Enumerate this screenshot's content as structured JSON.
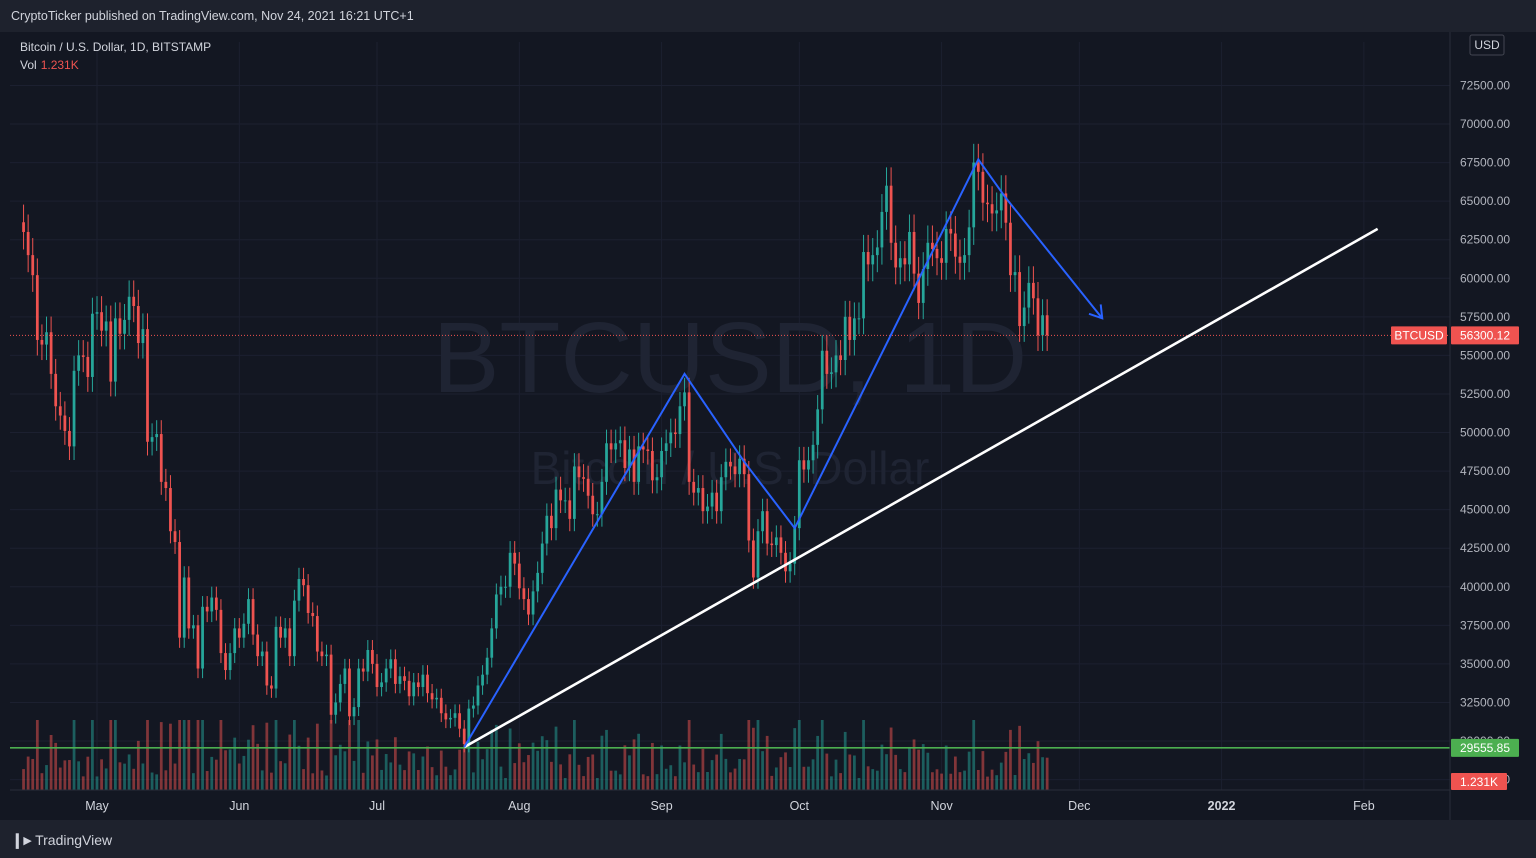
{
  "header": {
    "published_by": "CryptoTicker published on TradingView.com, Nov 24, 2021 16:21 UTC+1"
  },
  "symbol_legend": {
    "title": "Bitcoin / U.S. Dollar, 1D, BITSTAMP",
    "vol_label": "Vol",
    "vol_value": "1.231K"
  },
  "watermark": {
    "symbol": "BTCUSD, 1D",
    "name": "Bitcoin / U.S. Dollar"
  },
  "currency": "USD",
  "footer": {
    "brand": "TradingView"
  },
  "colors": {
    "up": "#26a69a",
    "down": "#ef5350",
    "pattern": "#2962ff",
    "trendline": "#ffffff",
    "support": "#4caf50",
    "background": "#131722"
  },
  "chart_data": {
    "type": "candlestick",
    "ylim": [
      26000,
      73000
    ],
    "y_ticks": [
      "27500.00",
      "30000.00",
      "32500.00",
      "35000.00",
      "37500.00",
      "40000.00",
      "42500.00",
      "45000.00",
      "47500.00",
      "50000.00",
      "52500.00",
      "55000.00",
      "57500.00",
      "60000.00",
      "62500.00",
      "65000.00",
      "67500.00",
      "70000.00",
      "72500.00"
    ],
    "x_ticks": [
      "May",
      "Jun",
      "Jul",
      "Aug",
      "Sep",
      "Oct",
      "Nov",
      "Dec",
      "2022",
      "Feb"
    ],
    "last_price": {
      "label": "BTCUSD",
      "value": 56300.12
    },
    "support_level": {
      "value": 29555.85
    },
    "volume_label": "1.231K",
    "closes": [
      [
        "2021-04-15",
        63000
      ],
      [
        "2021-04-16",
        61500
      ],
      [
        "2021-04-17",
        60200
      ],
      [
        "2021-04-18",
        56000
      ],
      [
        "2021-04-19",
        55700
      ],
      [
        "2021-04-20",
        56500
      ],
      [
        "2021-04-21",
        53800
      ],
      [
        "2021-04-22",
        51700
      ],
      [
        "2021-04-23",
        51100
      ],
      [
        "2021-04-24",
        50100
      ],
      [
        "2021-04-25",
        49100
      ],
      [
        "2021-04-26",
        54000
      ],
      [
        "2021-04-27",
        55000
      ],
      [
        "2021-04-28",
        54900
      ],
      [
        "2021-04-29",
        53600
      ],
      [
        "2021-04-30",
        57700
      ],
      [
        "2021-05-01",
        57800
      ],
      [
        "2021-05-02",
        56600
      ],
      [
        "2021-05-03",
        57200
      ],
      [
        "2021-05-04",
        53300
      ],
      [
        "2021-05-05",
        57400
      ],
      [
        "2021-05-06",
        56400
      ],
      [
        "2021-05-07",
        57300
      ],
      [
        "2021-05-08",
        58800
      ],
      [
        "2021-05-09",
        58200
      ],
      [
        "2021-05-10",
        55800
      ],
      [
        "2021-05-11",
        56700
      ],
      [
        "2021-05-12",
        49400
      ],
      [
        "2021-05-13",
        49700
      ],
      [
        "2021-05-14",
        49900
      ],
      [
        "2021-05-15",
        46800
      ],
      [
        "2021-05-16",
        46400
      ],
      [
        "2021-05-17",
        43600
      ],
      [
        "2021-05-18",
        42900
      ],
      [
        "2021-05-19",
        36700
      ],
      [
        "2021-05-20",
        40600
      ],
      [
        "2021-05-21",
        37300
      ],
      [
        "2021-05-22",
        37500
      ],
      [
        "2021-05-23",
        34700
      ],
      [
        "2021-05-24",
        38700
      ],
      [
        "2021-05-25",
        38400
      ],
      [
        "2021-05-26",
        39300
      ],
      [
        "2021-05-27",
        38500
      ],
      [
        "2021-05-28",
        35700
      ],
      [
        "2021-05-29",
        34600
      ],
      [
        "2021-05-30",
        35700
      ],
      [
        "2021-05-31",
        37300
      ],
      [
        "2021-06-01",
        36700
      ],
      [
        "2021-06-02",
        37600
      ],
      [
        "2021-06-03",
        39200
      ],
      [
        "2021-06-04",
        36900
      ],
      [
        "2021-06-05",
        35500
      ],
      [
        "2021-06-06",
        35800
      ],
      [
        "2021-06-07",
        33600
      ],
      [
        "2021-06-08",
        33400
      ],
      [
        "2021-06-09",
        37400
      ],
      [
        "2021-06-10",
        36700
      ],
      [
        "2021-06-11",
        37300
      ],
      [
        "2021-06-12",
        35500
      ],
      [
        "2021-06-13",
        39100
      ],
      [
        "2021-06-14",
        40500
      ],
      [
        "2021-06-15",
        40100
      ],
      [
        "2021-06-16",
        38300
      ],
      [
        "2021-06-17",
        38100
      ],
      [
        "2021-06-18",
        35800
      ],
      [
        "2021-06-19",
        35500
      ],
      [
        "2021-06-20",
        35600
      ],
      [
        "2021-06-21",
        31700
      ],
      [
        "2021-06-22",
        32500
      ],
      [
        "2021-06-23",
        33700
      ],
      [
        "2021-06-24",
        34700
      ],
      [
        "2021-06-25",
        31600
      ],
      [
        "2021-06-26",
        32200
      ],
      [
        "2021-06-27",
        34700
      ],
      [
        "2021-06-28",
        34500
      ],
      [
        "2021-06-29",
        35900
      ],
      [
        "2021-06-30",
        35000
      ],
      [
        "2021-07-01",
        33500
      ],
      [
        "2021-07-02",
        33800
      ],
      [
        "2021-07-03",
        34700
      ],
      [
        "2021-07-04",
        35300
      ],
      [
        "2021-07-05",
        33700
      ],
      [
        "2021-07-06",
        34200
      ],
      [
        "2021-07-07",
        33900
      ],
      [
        "2021-07-08",
        32900
      ],
      [
        "2021-07-09",
        33800
      ],
      [
        "2021-07-10",
        33500
      ],
      [
        "2021-07-11",
        34300
      ],
      [
        "2021-07-12",
        33100
      ],
      [
        "2021-07-13",
        32700
      ],
      [
        "2021-07-14",
        32800
      ],
      [
        "2021-07-15",
        31800
      ],
      [
        "2021-07-16",
        31400
      ],
      [
        "2021-07-17",
        31500
      ],
      [
        "2021-07-18",
        31800
      ],
      [
        "2021-07-19",
        30800
      ],
      [
        "2021-07-20",
        29800
      ],
      [
        "2021-07-21",
        32100
      ],
      [
        "2021-07-22",
        32300
      ],
      [
        "2021-07-23",
        33600
      ],
      [
        "2021-07-24",
        34300
      ],
      [
        "2021-07-25",
        35400
      ],
      [
        "2021-07-26",
        37300
      ],
      [
        "2021-07-27",
        39500
      ],
      [
        "2021-07-28",
        40000
      ],
      [
        "2021-07-29",
        40000
      ],
      [
        "2021-07-30",
        42200
      ],
      [
        "2021-07-31",
        41500
      ],
      [
        "2021-08-01",
        39900
      ],
      [
        "2021-08-02",
        39200
      ],
      [
        "2021-08-03",
        38200
      ],
      [
        "2021-08-04",
        39700
      ],
      [
        "2021-08-05",
        40900
      ],
      [
        "2021-08-06",
        42800
      ],
      [
        "2021-08-07",
        44600
      ],
      [
        "2021-08-08",
        43800
      ],
      [
        "2021-08-09",
        46300
      ],
      [
        "2021-08-10",
        45600
      ],
      [
        "2021-08-11",
        45600
      ],
      [
        "2021-08-12",
        44400
      ],
      [
        "2021-08-13",
        47800
      ],
      [
        "2021-08-14",
        47100
      ],
      [
        "2021-08-15",
        47000
      ],
      [
        "2021-08-16",
        45900
      ],
      [
        "2021-08-17",
        44700
      ],
      [
        "2021-08-18",
        44700
      ],
      [
        "2021-08-19",
        46800
      ],
      [
        "2021-08-20",
        49300
      ],
      [
        "2021-08-21",
        48900
      ],
      [
        "2021-08-22",
        49300
      ],
      [
        "2021-08-23",
        49500
      ],
      [
        "2021-08-24",
        47700
      ],
      [
        "2021-08-25",
        48900
      ],
      [
        "2021-08-26",
        46800
      ],
      [
        "2021-08-27",
        49100
      ],
      [
        "2021-08-28",
        48900
      ],
      [
        "2021-08-29",
        48800
      ],
      [
        "2021-08-30",
        46900
      ],
      [
        "2021-08-31",
        47100
      ],
      [
        "2021-09-01",
        48800
      ],
      [
        "2021-09-02",
        49300
      ],
      [
        "2021-09-03",
        50000
      ],
      [
        "2021-09-04",
        49900
      ],
      [
        "2021-09-05",
        51700
      ],
      [
        "2021-09-06",
        52600
      ],
      [
        "2021-09-07",
        46800
      ],
      [
        "2021-09-08",
        46100
      ],
      [
        "2021-09-09",
        46400
      ],
      [
        "2021-09-10",
        44900
      ],
      [
        "2021-09-11",
        45200
      ],
      [
        "2021-09-12",
        46100
      ],
      [
        "2021-09-13",
        44900
      ],
      [
        "2021-09-14",
        47100
      ],
      [
        "2021-09-15",
        48100
      ],
      [
        "2021-09-16",
        47800
      ],
      [
        "2021-09-17",
        47300
      ],
      [
        "2021-09-18",
        48300
      ],
      [
        "2021-09-19",
        47300
      ],
      [
        "2021-09-20",
        43000
      ],
      [
        "2021-09-21",
        40600
      ],
      [
        "2021-09-22",
        43600
      ],
      [
        "2021-09-23",
        44900
      ],
      [
        "2021-09-24",
        42800
      ],
      [
        "2021-09-25",
        42700
      ],
      [
        "2021-09-26",
        43200
      ],
      [
        "2021-09-27",
        42200
      ],
      [
        "2021-09-28",
        41000
      ],
      [
        "2021-09-29",
        41500
      ],
      [
        "2021-09-30",
        43800
      ],
      [
        "2021-10-01",
        48200
      ],
      [
        "2021-10-02",
        47600
      ],
      [
        "2021-10-03",
        48200
      ],
      [
        "2021-10-04",
        49200
      ],
      [
        "2021-10-05",
        51500
      ],
      [
        "2021-10-06",
        55300
      ],
      [
        "2021-10-07",
        53800
      ],
      [
        "2021-10-08",
        53900
      ],
      [
        "2021-10-09",
        55000
      ],
      [
        "2021-10-10",
        54700
      ],
      [
        "2021-10-11",
        57500
      ],
      [
        "2021-10-12",
        56000
      ],
      [
        "2021-10-13",
        57400
      ],
      [
        "2021-10-14",
        57400
      ],
      [
        "2021-10-15",
        61700
      ],
      [
        "2021-10-16",
        60900
      ],
      [
        "2021-10-17",
        61500
      ],
      [
        "2021-10-18",
        62000
      ],
      [
        "2021-10-19",
        64300
      ],
      [
        "2021-10-20",
        66000
      ],
      [
        "2021-10-21",
        62300
      ],
      [
        "2021-10-22",
        60700
      ],
      [
        "2021-10-23",
        61300
      ],
      [
        "2021-10-24",
        60900
      ],
      [
        "2021-10-25",
        63000
      ],
      [
        "2021-10-26",
        60300
      ],
      [
        "2021-10-27",
        58400
      ],
      [
        "2021-10-28",
        60600
      ],
      [
        "2021-10-29",
        62300
      ],
      [
        "2021-10-30",
        61900
      ],
      [
        "2021-10-31",
        61300
      ],
      [
        "2021-11-01",
        61000
      ],
      [
        "2021-11-02",
        63200
      ],
      [
        "2021-11-03",
        62900
      ],
      [
        "2021-11-04",
        61400
      ],
      [
        "2021-11-05",
        61000
      ],
      [
        "2021-11-06",
        61500
      ],
      [
        "2021-11-07",
        63300
      ],
      [
        "2021-11-08",
        67500
      ],
      [
        "2021-11-09",
        66900
      ],
      [
        "2021-11-10",
        64900
      ],
      [
        "2021-11-11",
        64800
      ],
      [
        "2021-11-12",
        64200
      ],
      [
        "2021-11-13",
        64400
      ],
      [
        "2021-11-14",
        65500
      ],
      [
        "2021-11-15",
        63600
      ],
      [
        "2021-11-16",
        60200
      ],
      [
        "2021-11-17",
        60400
      ],
      [
        "2021-11-18",
        56900
      ],
      [
        "2021-11-19",
        58100
      ],
      [
        "2021-11-20",
        59700
      ],
      [
        "2021-11-21",
        58700
      ],
      [
        "2021-11-22",
        56300
      ],
      [
        "2021-11-23",
        57600
      ],
      [
        "2021-11-24",
        56300
      ]
    ],
    "pattern_path": [
      [
        "2021-07-20",
        29600
      ],
      [
        "2021-09-06",
        53800
      ],
      [
        "2021-09-19",
        48100
      ],
      [
        "2021-09-30",
        43800
      ],
      [
        "2021-11-09",
        67700
      ],
      [
        "2021-11-15",
        65200
      ],
      [
        "2021-12-06",
        57400
      ]
    ],
    "trendline": [
      [
        "2021-07-20",
        29600
      ],
      [
        "2022-02-04",
        63200
      ]
    ]
  }
}
